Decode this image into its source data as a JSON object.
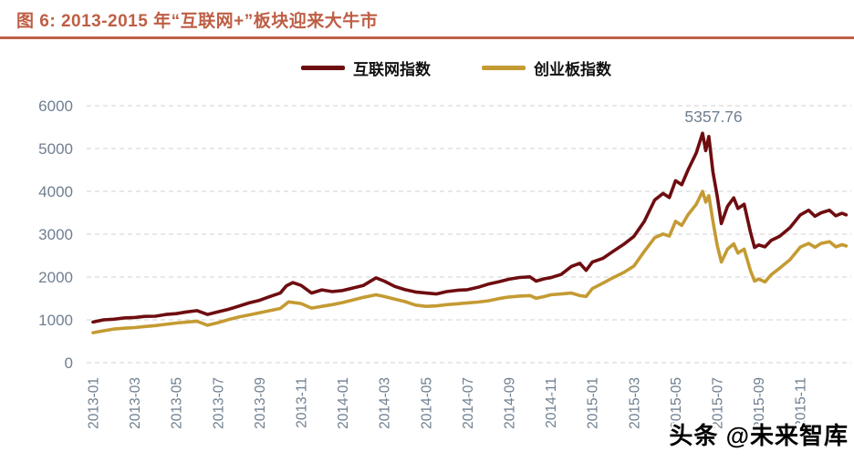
{
  "figure": {
    "title": "图 6:  2013-2015 年“互联网+”板块迎来大牛市",
    "title_color": "#BE5E45",
    "rule_color": "#C06048"
  },
  "watermark": {
    "text": "头条 @未来智库",
    "color": "#000000"
  },
  "colors": {
    "axis_text": "#6F7F90",
    "grid": "#DBDBDB",
    "series_internet": "#6E0D10",
    "series_chinext": "#C49B33"
  },
  "chart_data": {
    "type": "line",
    "title": "2013-2015 年“互联网+”板块迎来大牛市",
    "xlabel": "",
    "ylabel": "",
    "ylim": [
      0,
      6000
    ],
    "y_ticks": [
      0,
      1000,
      2000,
      3000,
      4000,
      5000,
      6000
    ],
    "grid": "horizontal-dashed",
    "legend_position": "top-center",
    "x_unit": "months since 2013-01",
    "x_tick_step_months": 2,
    "x_tick_labels": [
      "2013-01",
      "2013-03",
      "2013-05",
      "2013-07",
      "2013-09",
      "2013-11",
      "2014-01",
      "2014-03",
      "2014-05",
      "2014-07",
      "2014-09",
      "2014-11",
      "2015-01",
      "2015-03",
      "2015-05",
      "2015-07",
      "2015-09",
      "2015-11"
    ],
    "annotation": {
      "text": "5357.76",
      "x_month": 29.3,
      "value": 5357.76
    },
    "series": [
      {
        "name": "互联网指数",
        "color": "#6E0D10",
        "points": [
          [
            0,
            950
          ],
          [
            0.5,
            1000
          ],
          [
            1,
            1015
          ],
          [
            1.5,
            1045
          ],
          [
            2,
            1055
          ],
          [
            2.5,
            1080
          ],
          [
            3,
            1085
          ],
          [
            3.5,
            1125
          ],
          [
            4,
            1145
          ],
          [
            4.5,
            1185
          ],
          [
            5,
            1215
          ],
          [
            5.5,
            1125
          ],
          [
            6,
            1185
          ],
          [
            6.5,
            1245
          ],
          [
            7,
            1320
          ],
          [
            7.5,
            1395
          ],
          [
            8,
            1455
          ],
          [
            8.5,
            1545
          ],
          [
            9,
            1625
          ],
          [
            9.3,
            1795
          ],
          [
            9.6,
            1870
          ],
          [
            10,
            1805
          ],
          [
            10.5,
            1625
          ],
          [
            11,
            1700
          ],
          [
            11.5,
            1660
          ],
          [
            12,
            1685
          ],
          [
            12.5,
            1745
          ],
          [
            13,
            1805
          ],
          [
            13.6,
            1980
          ],
          [
            14,
            1905
          ],
          [
            14.5,
            1780
          ],
          [
            15,
            1705
          ],
          [
            15.5,
            1650
          ],
          [
            16,
            1625
          ],
          [
            16.5,
            1605
          ],
          [
            17,
            1660
          ],
          [
            17.5,
            1690
          ],
          [
            18,
            1705
          ],
          [
            18.5,
            1760
          ],
          [
            19,
            1835
          ],
          [
            19.5,
            1890
          ],
          [
            20,
            1950
          ],
          [
            20.5,
            1990
          ],
          [
            21,
            2005
          ],
          [
            21.3,
            1905
          ],
          [
            21.7,
            1960
          ],
          [
            22,
            1985
          ],
          [
            22.5,
            2060
          ],
          [
            23,
            2250
          ],
          [
            23.4,
            2320
          ],
          [
            23.7,
            2155
          ],
          [
            24,
            2350
          ],
          [
            24.5,
            2435
          ],
          [
            25,
            2600
          ],
          [
            25.5,
            2760
          ],
          [
            26,
            2950
          ],
          [
            26.5,
            3300
          ],
          [
            27,
            3800
          ],
          [
            27.4,
            3950
          ],
          [
            27.7,
            3855
          ],
          [
            28,
            4250
          ],
          [
            28.3,
            4155
          ],
          [
            28.6,
            4500
          ],
          [
            29,
            4900
          ],
          [
            29.3,
            5357.76
          ],
          [
            29.45,
            4950
          ],
          [
            29.6,
            5280
          ],
          [
            29.8,
            4450
          ],
          [
            30,
            3900
          ],
          [
            30.2,
            3250
          ],
          [
            30.5,
            3650
          ],
          [
            30.8,
            3850
          ],
          [
            31,
            3600
          ],
          [
            31.3,
            3700
          ],
          [
            31.6,
            3050
          ],
          [
            31.8,
            2690
          ],
          [
            32,
            2750
          ],
          [
            32.3,
            2705
          ],
          [
            32.6,
            2855
          ],
          [
            33,
            2950
          ],
          [
            33.5,
            3150
          ],
          [
            34,
            3450
          ],
          [
            34.4,
            3560
          ],
          [
            34.7,
            3420
          ],
          [
            35,
            3500
          ],
          [
            35.4,
            3560
          ],
          [
            35.7,
            3430
          ],
          [
            36,
            3490
          ],
          [
            36.2,
            3450
          ]
        ]
      },
      {
        "name": "创业板指数",
        "color": "#C49B33",
        "points": [
          [
            0,
            700
          ],
          [
            0.5,
            745
          ],
          [
            1,
            785
          ],
          [
            1.5,
            805
          ],
          [
            2,
            820
          ],
          [
            2.5,
            845
          ],
          [
            3,
            865
          ],
          [
            3.5,
            895
          ],
          [
            4,
            925
          ],
          [
            4.5,
            950
          ],
          [
            5,
            965
          ],
          [
            5.5,
            875
          ],
          [
            6,
            935
          ],
          [
            6.5,
            1005
          ],
          [
            7,
            1065
          ],
          [
            7.5,
            1115
          ],
          [
            8,
            1165
          ],
          [
            8.5,
            1215
          ],
          [
            9,
            1265
          ],
          [
            9.4,
            1420
          ],
          [
            10,
            1380
          ],
          [
            10.5,
            1275
          ],
          [
            11,
            1315
          ],
          [
            11.5,
            1355
          ],
          [
            12,
            1405
          ],
          [
            12.5,
            1465
          ],
          [
            13,
            1525
          ],
          [
            13.6,
            1585
          ],
          [
            14,
            1545
          ],
          [
            14.5,
            1485
          ],
          [
            15,
            1425
          ],
          [
            15.5,
            1345
          ],
          [
            16,
            1315
          ],
          [
            16.5,
            1325
          ],
          [
            17,
            1355
          ],
          [
            17.5,
            1375
          ],
          [
            18,
            1395
          ],
          [
            18.5,
            1415
          ],
          [
            19,
            1445
          ],
          [
            19.5,
            1495
          ],
          [
            20,
            1535
          ],
          [
            20.5,
            1555
          ],
          [
            21,
            1565
          ],
          [
            21.3,
            1505
          ],
          [
            21.7,
            1545
          ],
          [
            22,
            1585
          ],
          [
            22.5,
            1605
          ],
          [
            23,
            1625
          ],
          [
            23.4,
            1565
          ],
          [
            23.7,
            1545
          ],
          [
            24,
            1730
          ],
          [
            24.5,
            1855
          ],
          [
            25,
            1985
          ],
          [
            25.5,
            2105
          ],
          [
            26,
            2255
          ],
          [
            26.5,
            2600
          ],
          [
            27,
            2920
          ],
          [
            27.4,
            3005
          ],
          [
            27.7,
            2955
          ],
          [
            28,
            3300
          ],
          [
            28.3,
            3205
          ],
          [
            28.6,
            3455
          ],
          [
            29,
            3700
          ],
          [
            29.3,
            4000
          ],
          [
            29.45,
            3750
          ],
          [
            29.6,
            3900
          ],
          [
            29.8,
            3300
          ],
          [
            30,
            2750
          ],
          [
            30.2,
            2350
          ],
          [
            30.5,
            2650
          ],
          [
            30.8,
            2775
          ],
          [
            31,
            2560
          ],
          [
            31.3,
            2650
          ],
          [
            31.6,
            2150
          ],
          [
            31.8,
            1905
          ],
          [
            32,
            1955
          ],
          [
            32.3,
            1885
          ],
          [
            32.6,
            2055
          ],
          [
            33,
            2205
          ],
          [
            33.5,
            2405
          ],
          [
            34,
            2700
          ],
          [
            34.4,
            2785
          ],
          [
            34.7,
            2695
          ],
          [
            35,
            2785
          ],
          [
            35.4,
            2825
          ],
          [
            35.7,
            2705
          ],
          [
            36,
            2755
          ],
          [
            36.2,
            2725
          ]
        ]
      }
    ]
  }
}
